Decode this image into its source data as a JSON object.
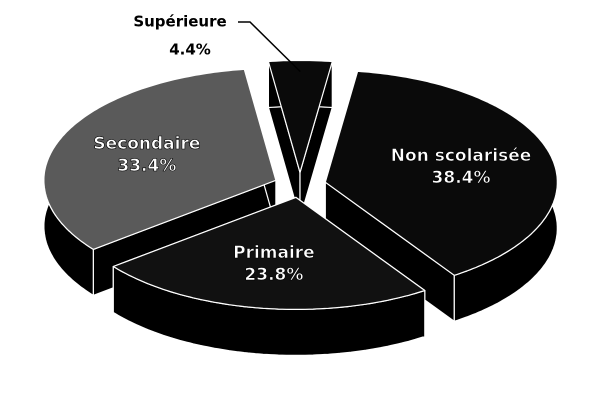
{
  "chart_data": {
    "type": "pie",
    "categories": [
      "Non scolarisée",
      "Primaire",
      "Secondaire",
      "Supérieure"
    ],
    "values": [
      38.4,
      23.8,
      33.4,
      4.4
    ],
    "value_labels": [
      "38.4%",
      "23.8%",
      "33.4%",
      "4.4%"
    ],
    "colors": [
      "#0a0a0a",
      "#111111",
      "#5a5a5a",
      "#0a0a0a"
    ]
  }
}
